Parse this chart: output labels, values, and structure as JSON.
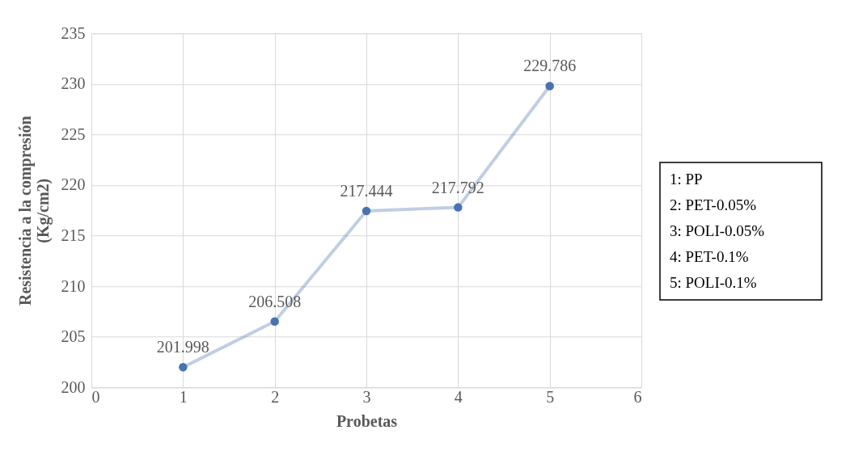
{
  "chart_data": {
    "type": "line",
    "xlabel": "Probetas",
    "ylabel": "Resistencia a la compresión\n(Kg/cm2)",
    "x": [
      1,
      2,
      3,
      4,
      5
    ],
    "series": [
      {
        "color": "#4a72b0",
        "values": [
          201.998,
          206.508,
          217.444,
          217.792,
          229.786
        ]
      }
    ],
    "xlim": [
      0,
      6
    ],
    "xticks": [
      0,
      1,
      2,
      3,
      4,
      5,
      6
    ],
    "ylim": [
      200,
      235
    ],
    "yticks": [
      200,
      205,
      210,
      215,
      220,
      225,
      230,
      235
    ],
    "grid": true,
    "marker": "circle",
    "line_style": "solid",
    "data_labels": true,
    "annotations": [
      "1: PP",
      "2: PET-0.05%",
      "3: POLI-0.05%",
      "4: PET-0.1%",
      "5: POLI-0.1%"
    ]
  }
}
